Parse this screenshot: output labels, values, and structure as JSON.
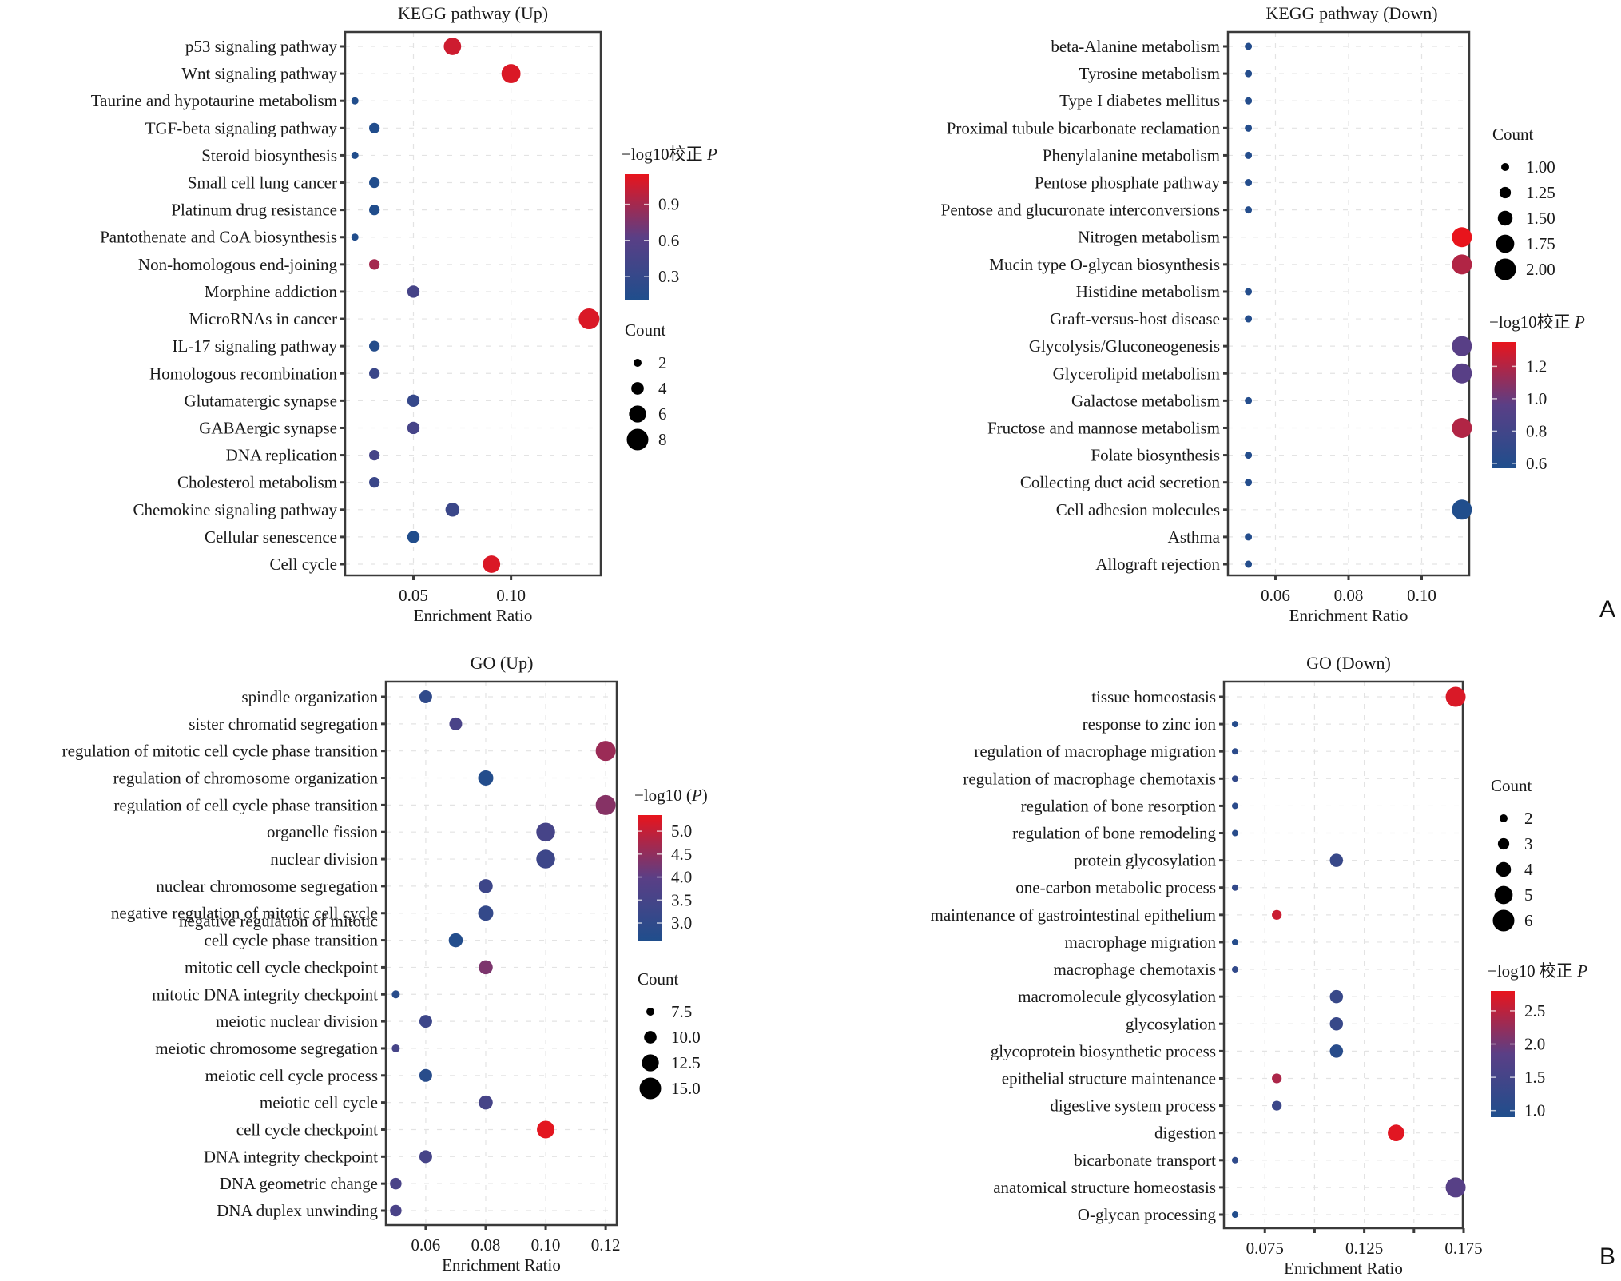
{
  "figure": {
    "panel_letters": [
      "A",
      "B"
    ]
  },
  "chart_data": [
    {
      "id": "kegg_up",
      "type": "scatter",
      "title": "KEGG pathway (Up)",
      "xlabel": "Enrichment Ratio",
      "ylabel": "",
      "xlim": [
        0.015,
        0.146
      ],
      "xticks": [
        0.05,
        0.1
      ],
      "xtick_labels": [
        "0.05",
        "0.10"
      ],
      "grid": true,
      "categories": [
        "p53 signaling pathway",
        "Wnt signaling pathway",
        "Taurine and hypotaurine metabolism",
        "TGF-beta signaling pathway",
        "Steroid biosynthesis",
        "Small cell lung cancer",
        "Platinum drug resistance",
        "Pantothenate and CoA biosynthesis",
        "Non-homologous end-joining",
        "Morphine addiction",
        "MicroRNAs in cancer",
        "IL-17 signaling pathway",
        "Homologous recombination",
        "Glutamatergic synapse",
        "GABAergic synapse",
        "DNA replication",
        "Cholesterol metabolism",
        "Chemokine signaling pathway",
        "Cellular senescence",
        "Cell cycle"
      ],
      "enrichment_ratio": [
        0.07,
        0.1,
        0.02,
        0.03,
        0.02,
        0.03,
        0.03,
        0.02,
        0.03,
        0.05,
        0.14,
        0.03,
        0.03,
        0.05,
        0.05,
        0.03,
        0.03,
        0.07,
        0.05,
        0.09
      ],
      "count": [
        7,
        8,
        1,
        3,
        1,
        3,
        3,
        1,
        3,
        4,
        9,
        3,
        3,
        4,
        4,
        3,
        3,
        5,
        4,
        7
      ],
      "neg_log10_p": [
        1.05,
        1.1,
        0.12,
        0.12,
        0.12,
        0.12,
        0.12,
        0.12,
        0.9,
        0.45,
        1.1,
        0.15,
        0.35,
        0.3,
        0.45,
        0.45,
        0.35,
        0.35,
        0.12,
        1.1
      ],
      "color_legend": {
        "title_prefix": "−log10校正 ",
        "title_italic": "P",
        "ticks": [
          "0.9",
          "0.6",
          "0.3"
        ],
        "tick_values": [
          0.9,
          0.6,
          0.3
        ],
        "range": [
          0.1,
          1.15
        ]
      },
      "size_legend": {
        "title": "Count",
        "labels": [
          "2",
          "4",
          "6",
          "8"
        ],
        "values": [
          2,
          4,
          6,
          8
        ]
      },
      "legend_order": [
        "color",
        "size"
      ],
      "legend_position": "right"
    },
    {
      "id": "kegg_down",
      "type": "scatter",
      "title": "KEGG pathway (Down)",
      "xlabel": "Enrichment Ratio",
      "ylabel": "",
      "xlim": [
        0.047,
        0.113
      ],
      "xticks": [
        0.06,
        0.08,
        0.1
      ],
      "xtick_labels": [
        "0.06",
        "0.08",
        "0.10"
      ],
      "grid": true,
      "categories": [
        "beta-Alanine metabolism",
        "Tyrosine metabolism",
        "Type I diabetes mellitus",
        "Proximal tubule bicarbonate reclamation",
        "Phenylalanine metabolism",
        "Pentose phosphate pathway",
        "Pentose and glucuronate interconversions",
        "Nitrogen metabolism",
        "Mucin type O-glycan biosynthesis",
        "Histidine metabolism",
        "Graft-versus-host disease",
        "Glycolysis/Gluconeogenesis",
        "Glycerolipid metabolism",
        "Galactose metabolism",
        "Fructose and mannose metabolism",
        "Folate biosynthesis",
        "Collecting duct acid secretion",
        "Cell adhesion molecules",
        "Asthma",
        "Allograft rejection"
      ],
      "enrichment_ratio": [
        0.0526,
        0.0526,
        0.0526,
        0.0526,
        0.0526,
        0.0526,
        0.0526,
        0.111,
        0.111,
        0.0526,
        0.0526,
        0.111,
        0.111,
        0.0526,
        0.111,
        0.0526,
        0.0526,
        0.111,
        0.0526,
        0.0526
      ],
      "count": [
        1,
        1,
        1,
        1,
        1,
        1,
        1,
        2,
        2,
        1,
        1,
        2,
        2,
        1,
        2,
        1,
        1,
        2,
        1,
        1
      ],
      "neg_log10_p": [
        0.6,
        0.6,
        0.6,
        0.6,
        0.6,
        0.6,
        0.6,
        1.35,
        1.2,
        0.6,
        0.6,
        0.95,
        0.95,
        0.6,
        1.2,
        0.6,
        0.6,
        0.58,
        0.6,
        0.6
      ],
      "color_legend": {
        "title_prefix": "−log10校正 ",
        "title_italic": "P",
        "ticks": [
          "1.2",
          "1.0",
          "0.8",
          "0.6"
        ],
        "tick_values": [
          1.2,
          1.0,
          0.8,
          0.6
        ],
        "range": [
          0.57,
          1.35
        ]
      },
      "size_legend": {
        "title": "Count",
        "labels": [
          "1.00",
          "1.25",
          "1.50",
          "1.75",
          "2.00"
        ],
        "values": [
          1.0,
          1.25,
          1.5,
          1.75,
          2.0
        ]
      },
      "legend_order": [
        "size",
        "color"
      ],
      "legend_position": "right"
    },
    {
      "id": "go_up",
      "type": "scatter",
      "title": "GO (Up)",
      "xlabel": "Enrichment Ratio",
      "ylabel": "",
      "xlim": [
        0.0467,
        0.1237
      ],
      "xticks": [
        0.06,
        0.08,
        0.1,
        0.12
      ],
      "xtick_labels": [
        "0.06",
        "0.08",
        "0.10",
        "0.12"
      ],
      "grid": true,
      "categories": [
        "spindle organization",
        "sister chromatid segregation",
        "regulation of mitotic cell cycle phase transition",
        "regulation of chromosome organization",
        "regulation of cell cycle phase transition",
        "organelle fission",
        "nuclear division",
        "nuclear chromosome segregation",
        "negative regulation of mitotic cell cycle",
        "negative regulation of mitotic\ncell cycle phase transition",
        "mitotic cell cycle checkpoint",
        "mitotic DNA integrity checkpoint",
        "meiotic nuclear division",
        "meiotic chromosome segregation",
        "meiotic cell cycle process",
        "meiotic cell cycle",
        "cell cycle checkpoint",
        "DNA integrity checkpoint",
        "DNA geometric change",
        "DNA duplex unwinding"
      ],
      "enrichment_ratio": [
        0.06,
        0.07,
        0.12,
        0.08,
        0.12,
        0.1,
        0.1,
        0.08,
        0.08,
        0.07,
        0.08,
        0.05,
        0.06,
        0.05,
        0.06,
        0.08,
        0.1,
        0.06,
        0.05,
        0.05
      ],
      "count": [
        10,
        10,
        16,
        12,
        16,
        15,
        15,
        11,
        12,
        11,
        11,
        6,
        10,
        6,
        10,
        11,
        14,
        10,
        9,
        9
      ],
      "neg_log10_p": [
        3.0,
        3.6,
        4.6,
        2.7,
        4.4,
        3.5,
        3.3,
        3.3,
        3.1,
        2.7,
        4.3,
        2.8,
        3.3,
        3.5,
        2.8,
        3.5,
        5.3,
        3.5,
        3.6,
        3.6
      ],
      "color_legend": {
        "title_prefix": "−log10 (",
        "title_italic": "P",
        "title_suffix": ")",
        "ticks": [
          "5.0",
          "4.5",
          "4.0",
          "3.5",
          "3.0"
        ],
        "tick_values": [
          5.0,
          4.5,
          4.0,
          3.5,
          3.0
        ],
        "range": [
          2.6,
          5.35
        ]
      },
      "size_legend": {
        "title": "Count",
        "labels": [
          "7.5",
          "10.0",
          "12.5",
          "15.0"
        ],
        "values": [
          7.5,
          10.0,
          12.5,
          15.0
        ]
      },
      "legend_order": [
        "color",
        "size"
      ],
      "legend_position": "right"
    },
    {
      "id": "go_down",
      "type": "scatter",
      "title": "GO (Down)",
      "xlabel": "Enrichment Ratio",
      "ylabel": "",
      "xlim": [
        0.0544,
        0.1746
      ],
      "xticks": [
        0.075,
        0.1,
        0.125,
        0.15,
        0.175
      ],
      "xtick_labels": [
        "0.075",
        "",
        "0.125",
        "",
        "0.175"
      ],
      "grid": true,
      "categories": [
        "tissue homeostasis",
        "response to zinc ion",
        "regulation of macrophage migration",
        "regulation of macrophage chemotaxis",
        "regulation of bone resorption",
        "regulation of bone remodeling",
        "protein glycosylation",
        "one-carbon metabolic process",
        "maintenance of gastrointestinal epithelium",
        "macrophage migration",
        "macrophage chemotaxis",
        "macromolecule glycosylation",
        "glycosylation",
        "glycoprotein biosynthetic process",
        "epithelial structure maintenance",
        "digestive system process",
        "digestion",
        "bicarbonate transport",
        "anatomical structure homeostasis",
        "O-glycan processing"
      ],
      "enrichment_ratio": [
        0.171,
        0.06,
        0.06,
        0.06,
        0.06,
        0.06,
        0.111,
        0.06,
        0.081,
        0.06,
        0.06,
        0.111,
        0.111,
        0.111,
        0.081,
        0.081,
        0.141,
        0.06,
        0.171,
        0.06
      ],
      "count": [
        6,
        2,
        2,
        2,
        2,
        2,
        4,
        2,
        3,
        2,
        2,
        4,
        4,
        4,
        3,
        3,
        5,
        2,
        6,
        2
      ],
      "neg_log10_p": [
        2.7,
        1.0,
        1.1,
        1.2,
        1.1,
        1.05,
        1.3,
        1.2,
        2.6,
        1.0,
        1.2,
        1.3,
        1.3,
        1.05,
        2.4,
        1.35,
        2.75,
        1.15,
        1.8,
        0.95
      ],
      "color_legend": {
        "title_prefix": "−log10 校正 ",
        "title_italic": "P",
        "ticks": [
          "2.5",
          "2.0",
          "1.5",
          "1.0"
        ],
        "tick_values": [
          2.5,
          2.0,
          1.5,
          1.0
        ],
        "range": [
          0.9,
          2.8
        ]
      },
      "size_legend": {
        "title": "Count",
        "labels": [
          "2",
          "3",
          "4",
          "5",
          "6"
        ],
        "values": [
          2,
          3,
          4,
          5,
          6
        ]
      },
      "legend_order": [
        "size",
        "color"
      ],
      "legend_position": "right"
    }
  ],
  "colors": {
    "low": "#1f4e8c",
    "mid": "#5a3f86",
    "high": "#e8141c",
    "axis": "#3a3a3a",
    "grid": "#e3e3e3",
    "text": "#1a1a1a"
  }
}
